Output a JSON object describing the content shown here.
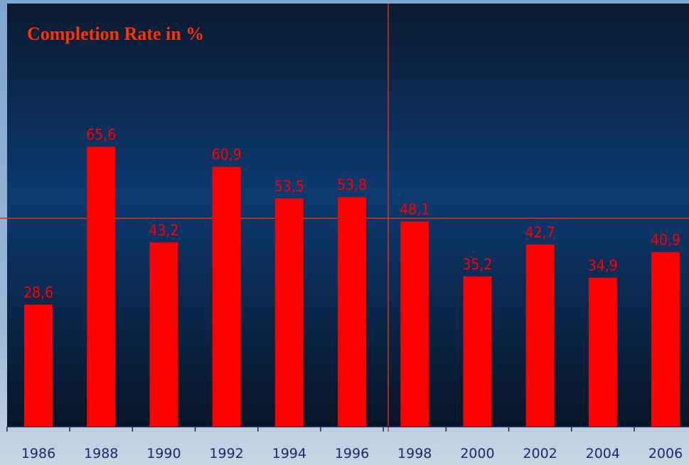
{
  "chart_data": {
    "type": "bar",
    "title": "Completion Rate in %",
    "categories": [
      "1986",
      "1988",
      "1990",
      "1992",
      "1994",
      "1996",
      "1998",
      "2000",
      "2002",
      "2004",
      "2006"
    ],
    "values": [
      28.6,
      65.6,
      43.2,
      60.9,
      53.5,
      53.8,
      48.1,
      35.2,
      42.7,
      34.9,
      40.9
    ],
    "value_labels": [
      "28,6",
      "65,6",
      "43,2",
      "60,9",
      "53,5",
      "53,8",
      "48,1",
      "35,2",
      "42,7",
      "34,9",
      "40,9"
    ],
    "color": "#ff0000"
  }
}
